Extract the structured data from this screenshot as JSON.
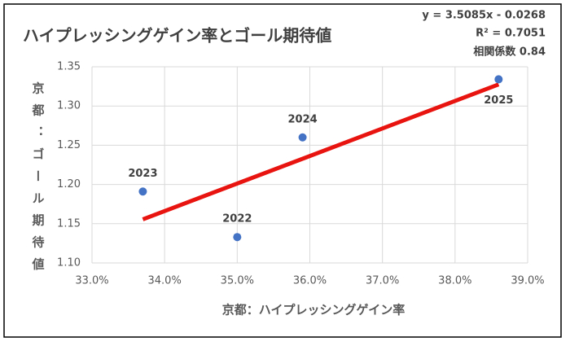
{
  "chart_data": {
    "type": "scatter",
    "title": "ハイプレッシングゲイン率とゴール期待値",
    "x_label": "京都：ハイプレッシングゲイン率",
    "y_label": "京都：ゴール期待値",
    "annotations": [
      "y = 3.5085x - 0.0268",
      "R² = 0.7051",
      "相関係数 0.84"
    ],
    "x": [
      35.0,
      33.7,
      35.9,
      38.6
    ],
    "values": [
      1.133,
      1.191,
      1.26,
      1.334
    ],
    "point_labels": [
      "2022",
      "2023",
      "2024",
      "2025"
    ],
    "color": "#4472c4",
    "trendline": {
      "color": "#e8140f",
      "x": [
        33.7,
        38.6
      ],
      "values": [
        1.1556,
        1.3275
      ]
    },
    "xlim": [
      33,
      39
    ],
    "xticks": [
      {
        "value": 33,
        "label": "33.0%"
      },
      {
        "value": 34,
        "label": "34.0%"
      },
      {
        "value": 35,
        "label": "35.0%"
      },
      {
        "value": 36,
        "label": "36.0%"
      },
      {
        "value": 37,
        "label": "37.0%"
      },
      {
        "value": 38,
        "label": "38.0%"
      },
      {
        "value": 39,
        "label": "39.0%"
      }
    ],
    "ylim": [
      1.1,
      1.35
    ],
    "yticks": [
      {
        "value": 1.1,
        "label": "1.10"
      },
      1.15,
      {
        "value": 1.2,
        "label": "1.20"
      },
      1.25,
      {
        "value": 1.3,
        "label": "1.30"
      },
      1.35
    ],
    "grid": true
  }
}
